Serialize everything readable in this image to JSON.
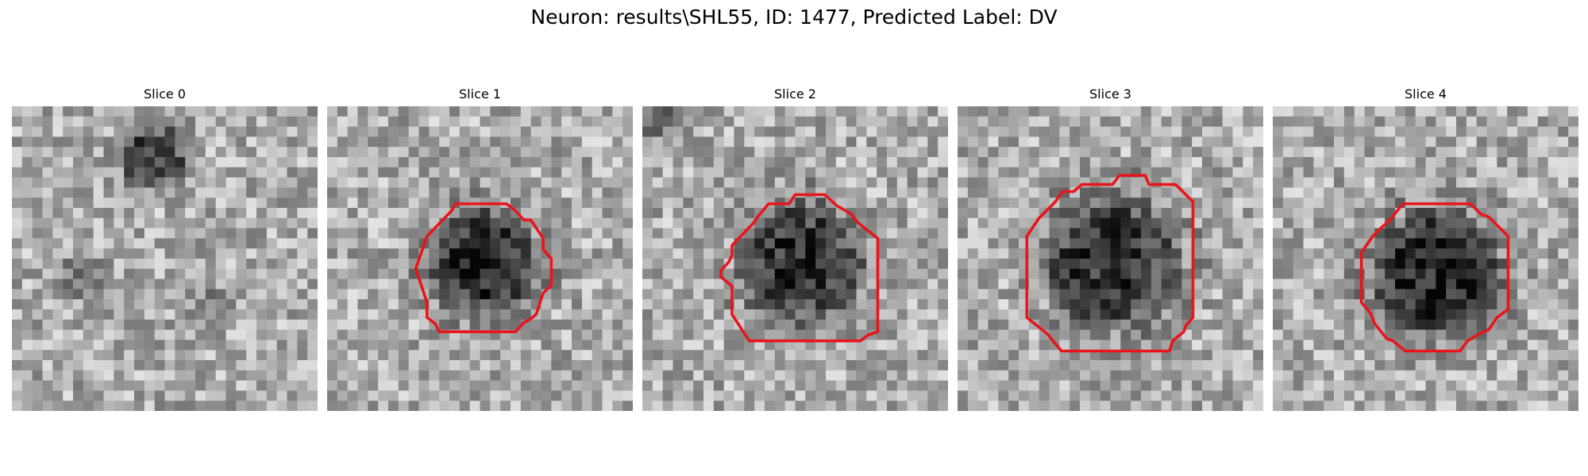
{
  "figure": {
    "title": "Neuron: results\\SHL55, ID: 1477, Predicted Label: DV"
  },
  "panels": [
    {
      "title": "Slice 0",
      "has_contour": false
    },
    {
      "title": "Slice 1",
      "has_contour": true
    },
    {
      "title": "Slice 2",
      "has_contour": true
    },
    {
      "title": "Slice 3",
      "has_contour": true
    },
    {
      "title": "Slice 4",
      "has_contour": true
    }
  ],
  "colors": {
    "contour": "#e8151b",
    "background": "#ffffff",
    "text": "#000000"
  }
}
